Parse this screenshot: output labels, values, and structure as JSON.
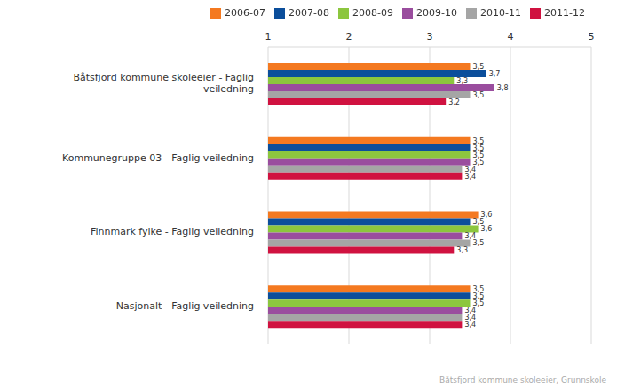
{
  "chart_data": {
    "type": "bar",
    "orientation": "horizontal",
    "categories": [
      "Båtsfjord kommune skoleeier - Faglig veiledning",
      "Kommunegruppe 03 - Faglig veiledning",
      "Finnmark fylke - Faglig veiledning",
      "Nasjonalt - Faglig veiledning"
    ],
    "series": [
      {
        "name": "2006-07",
        "color": "#f47920",
        "values": [
          3.5,
          3.5,
          3.6,
          3.5
        ],
        "value_labels": [
          "3,5",
          "3,5",
          "3,6",
          "3,5"
        ]
      },
      {
        "name": "2007-08",
        "color": "#0b4e9b",
        "values": [
          3.7,
          3.5,
          3.5,
          3.5
        ],
        "value_labels": [
          "3,7",
          "3,5",
          "3,5",
          "3,5"
        ]
      },
      {
        "name": "2008-09",
        "color": "#8cc63e",
        "values": [
          3.3,
          3.5,
          3.6,
          3.5
        ],
        "value_labels": [
          "3,3",
          "3,5",
          "3,6",
          "3,5"
        ]
      },
      {
        "name": "2009-10",
        "color": "#9a4d9e",
        "values": [
          3.8,
          3.5,
          3.4,
          3.4
        ],
        "value_labels": [
          "3,8",
          "3,5",
          "3,4",
          "3,4"
        ]
      },
      {
        "name": "2010-11",
        "color": "#a5a5a5",
        "values": [
          3.5,
          3.4,
          3.5,
          3.4
        ],
        "value_labels": [
          "3,5",
          "3,4",
          "3,5",
          "3,4"
        ]
      },
      {
        "name": "2011-12",
        "color": "#d01240",
        "values": [
          3.2,
          3.4,
          3.3,
          3.4
        ],
        "value_labels": [
          "3,2",
          "3,4",
          "3,3",
          "3,4"
        ]
      }
    ],
    "xlim": [
      1,
      5
    ],
    "xticks": [
      1,
      2,
      3,
      4,
      5
    ],
    "grid": true,
    "data_labels": true,
    "legend": "top",
    "annotations": [
      "Båtsfjord kommune skoleeier, Grunnskole"
    ]
  }
}
